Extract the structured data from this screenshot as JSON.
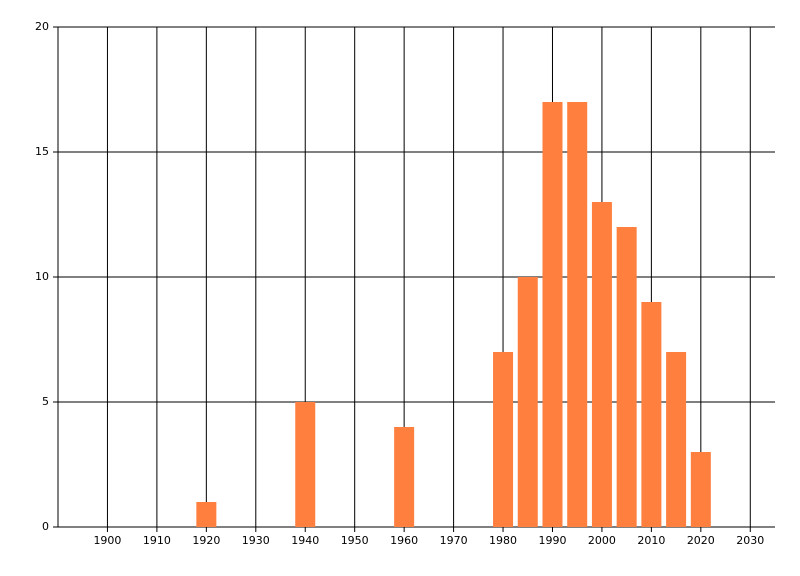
{
  "chart_data": {
    "type": "bar",
    "x": [
      1920,
      1940,
      1960,
      1980,
      1985,
      1990,
      1995,
      2000,
      2005,
      2010,
      2015,
      2020
    ],
    "values": [
      1,
      5,
      4,
      7,
      10,
      17,
      17,
      13,
      12,
      9,
      7,
      3
    ],
    "color": "#ff7f3f",
    "xlim": [
      1890,
      2035
    ],
    "xticks": [
      1900,
      1910,
      1920,
      1930,
      1940,
      1950,
      1960,
      1970,
      1980,
      1990,
      2000,
      2010,
      2020,
      2030
    ],
    "ylim": [
      0,
      20
    ],
    "yticks": [
      0,
      5,
      10,
      15,
      20
    ],
    "grid": true
  }
}
